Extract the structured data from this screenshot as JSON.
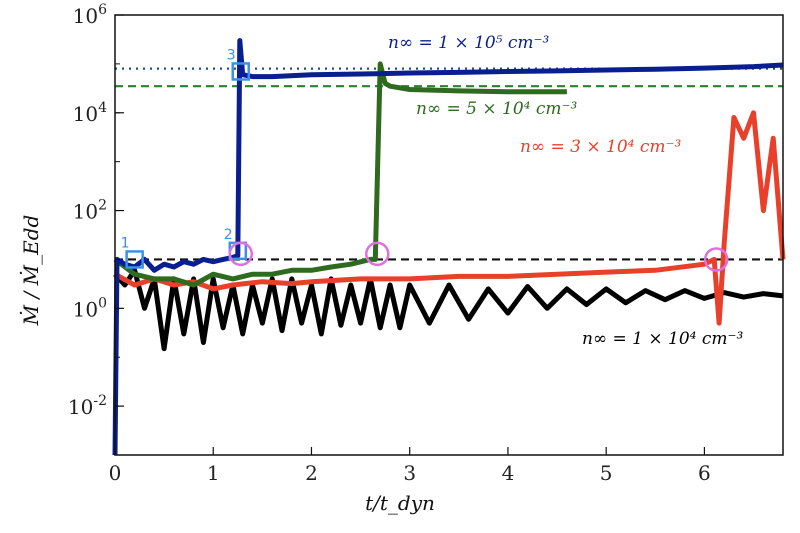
{
  "chart_data": {
    "type": "line",
    "title": "",
    "xlabel": "t/t_dyn",
    "ylabel": "Ṁ / Ṁ_Edd",
    "xlim": [
      0,
      6.8
    ],
    "ylim_log10": [
      -3,
      6
    ],
    "y_scale": "log",
    "grid": false,
    "x_ticks": [
      "0",
      "1",
      "2",
      "3",
      "4",
      "5",
      "6"
    ],
    "y_ticks": [
      {
        "exp": -2,
        "label": "10^-2"
      },
      {
        "exp": 0,
        "label": "10^0"
      },
      {
        "exp": 2,
        "label": "10^2"
      },
      {
        "exp": 4,
        "label": "10^4"
      },
      {
        "exp": 6,
        "label": "10^6"
      }
    ],
    "reference_lines": [
      {
        "name": "eddington",
        "y": 10,
        "style": "dashed",
        "color": "#111111"
      },
      {
        "name": "blue-level",
        "y": 80000,
        "style": "dotted",
        "color": "#1f4e9a"
      },
      {
        "name": "green-level",
        "y": 35000,
        "style": "dashed",
        "color": "#2e7d32"
      }
    ],
    "series": [
      {
        "key": "n1e4",
        "label": "n∞ = 1 × 10⁴ cm⁻³",
        "color": "#000000",
        "x": [
          0.0,
          0.1,
          0.2,
          0.3,
          0.4,
          0.5,
          0.6,
          0.7,
          0.8,
          0.9,
          1.0,
          1.1,
          1.2,
          1.3,
          1.4,
          1.5,
          1.6,
          1.7,
          1.8,
          1.9,
          2.0,
          2.1,
          2.2,
          2.3,
          2.4,
          2.5,
          2.6,
          2.7,
          2.8,
          2.9,
          3.0,
          3.2,
          3.4,
          3.6,
          3.8,
          4.0,
          4.2,
          4.4,
          4.6,
          4.8,
          5.0,
          5.2,
          5.4,
          5.6,
          5.8,
          6.0,
          6.2,
          6.4,
          6.6,
          6.8
        ],
        "y": [
          5,
          3,
          6,
          1,
          4,
          0.15,
          4,
          0.3,
          4,
          0.2,
          4,
          0.4,
          3,
          0.3,
          3,
          0.5,
          4,
          0.35,
          4,
          0.5,
          3,
          0.3,
          4,
          0.45,
          3,
          0.5,
          4,
          0.4,
          3,
          0.4,
          3,
          0.5,
          3,
          0.6,
          2.5,
          0.8,
          2.8,
          1,
          2.5,
          1.2,
          2.5,
          1.3,
          2.3,
          1.5,
          2.3,
          1.6,
          2.1,
          1.7,
          2,
          1.8
        ]
      },
      {
        "key": "n3e4",
        "label": "n∞ = 3 × 10⁴ cm⁻³",
        "color": "#e8402b",
        "x": [
          0.0,
          0.2,
          0.4,
          0.6,
          0.8,
          1.0,
          1.2,
          1.5,
          1.8,
          2.0,
          2.5,
          3.0,
          3.5,
          4.0,
          4.5,
          5.0,
          5.5,
          6.0,
          6.1,
          6.15,
          6.2,
          6.3,
          6.4,
          6.5,
          6.6,
          6.7,
          6.8
        ],
        "y": [
          5,
          3,
          4,
          3,
          3.5,
          2.5,
          3,
          3.5,
          3.2,
          3.5,
          4,
          4,
          4.5,
          4.5,
          5,
          5.5,
          6,
          8,
          10,
          0.5,
          20,
          8000,
          3000,
          10000,
          100,
          3000,
          10
        ]
      },
      {
        "key": "n5e4",
        "label": "n∞ = 5 × 10⁴ cm⁻³",
        "color": "#2e6b1f",
        "x": [
          0.0,
          0.2,
          0.4,
          0.6,
          0.8,
          1.0,
          1.2,
          1.4,
          1.6,
          1.8,
          2.0,
          2.2,
          2.4,
          2.6,
          2.65,
          2.7,
          2.75,
          2.8,
          3.0,
          3.5,
          4.0,
          4.5,
          4.6
        ],
        "y": [
          10,
          5,
          4,
          4,
          3,
          5,
          4,
          5,
          5,
          6,
          6,
          7,
          8,
          10,
          10,
          100000,
          40000,
          35000,
          30000,
          28000,
          27000,
          27000,
          27000
        ]
      },
      {
        "key": "n1e5",
        "label": "n∞ = 1 × 10⁵ cm⁻³",
        "color": "#0a1f8f",
        "x": [
          0.0,
          0.02,
          0.1,
          0.2,
          0.3,
          0.4,
          0.5,
          0.6,
          0.7,
          0.8,
          0.9,
          1.0,
          1.1,
          1.2,
          1.25,
          1.27,
          1.3,
          1.4,
          1.6,
          2.0,
          2.5,
          3.0,
          3.5,
          4.0,
          4.5,
          5.0,
          5.5,
          6.0,
          6.5,
          6.8
        ],
        "y": [
          0.001,
          10,
          8,
          7,
          10,
          6,
          8,
          7,
          9,
          8,
          10,
          9,
          10,
          11,
          12,
          300000,
          60000,
          55000,
          55000,
          60000,
          62000,
          65000,
          67000,
          70000,
          72000,
          75000,
          78000,
          82000,
          88000,
          95000
        ]
      }
    ],
    "annotations": [
      {
        "text": "n∞ = 1 × 10⁵ cm⁻³",
        "color": "#0a1f8f"
      },
      {
        "text": "n∞ = 5 × 10⁴ cm⁻³",
        "color": "#2e6b1f"
      },
      {
        "text": "n∞ = 3 × 10⁴ cm⁻³",
        "color": "#e8402b"
      },
      {
        "text": "n∞ = 1 × 10⁴ cm⁻³",
        "color": "#000000"
      }
    ],
    "square_markers": [
      {
        "label": "1",
        "x": 0.2,
        "y": 10
      },
      {
        "label": "2",
        "x": 1.25,
        "y": 15
      },
      {
        "label": "3",
        "x": 1.28,
        "y": 70000
      }
    ],
    "circle_markers": [
      {
        "x": 1.28,
        "y": 13
      },
      {
        "x": 2.67,
        "y": 13
      },
      {
        "x": 6.12,
        "y": 10
      }
    ],
    "colors": {
      "square_marker": "#3f8fe8",
      "circle_marker": "#e070e0"
    }
  }
}
